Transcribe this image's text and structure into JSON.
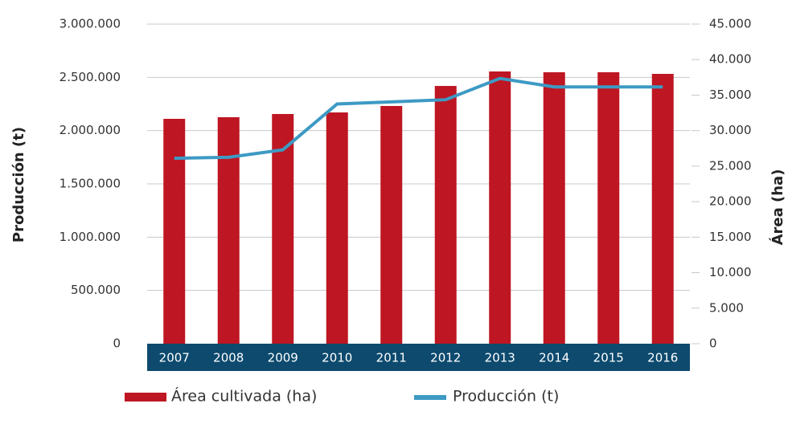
{
  "chart_data": {
    "type": "combo",
    "categories": [
      "2007",
      "2008",
      "2009",
      "2010",
      "2011",
      "2012",
      "2013",
      "2014",
      "2015",
      "2016"
    ],
    "series": [
      {
        "name": "Área cultivada (ha)",
        "type": "bar",
        "axis": "y2",
        "color": "#be1622",
        "values": [
          31660,
          31890,
          32340,
          32560,
          33470,
          36290,
          38330,
          38220,
          38220,
          37990
        ]
      },
      {
        "name": "Producción (t)",
        "type": "line",
        "axis": "y",
        "color": "#3d9ac4",
        "values": [
          1740000,
          1750000,
          1820000,
          2250000,
          2270000,
          2290000,
          2490000,
          2410000,
          2410000,
          2410000
        ]
      }
    ],
    "y_label": "Producción (t)",
    "y2_label": "Área (ha)",
    "ylim": [
      0,
      3000000
    ],
    "yticks": [
      0,
      {
        "value": 500000,
        "label": "500.000"
      },
      {
        "value": 1000000,
        "label": "1.000.000"
      },
      {
        "value": 1500000,
        "label": "1.500.000"
      },
      {
        "value": 2000000,
        "label": "2.000.000"
      },
      {
        "value": 2500000,
        "label": "2.500.000"
      },
      {
        "value": 3000000,
        "label": "3.000.000"
      }
    ],
    "y2lim": [
      0,
      45000
    ],
    "y2ticks": [
      0,
      {
        "value": 5000,
        "label": "5.000"
      },
      {
        "value": 10000,
        "label": "10.000"
      },
      {
        "value": 15000,
        "label": "15.000"
      },
      {
        "value": 20000,
        "label": "20.000"
      },
      {
        "value": 25000,
        "label": "25.000"
      },
      {
        "value": 30000,
        "label": "30.000"
      },
      {
        "value": 35000,
        "label": "35.000"
      },
      {
        "value": 40000,
        "label": "40.000"
      },
      {
        "value": 45000,
        "label": "45.000"
      }
    ],
    "grid": true,
    "legend": "bottom",
    "axis_band_color": "#0d4a6e"
  }
}
